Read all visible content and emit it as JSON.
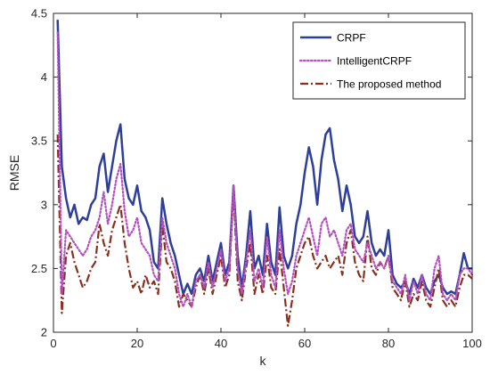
{
  "chart_data": {
    "type": "line",
    "title": "",
    "xlabel": "k",
    "ylabel": "RMSE",
    "xlim": [
      0,
      100
    ],
    "ylim": [
      2,
      4.5
    ],
    "xticks": [
      "0",
      "20",
      "40",
      "60",
      "80",
      "100"
    ],
    "yticks": [
      "2",
      "2.5",
      "3",
      "3.5",
      "4",
      "4.5"
    ],
    "grid": false,
    "legend_position": "top-right",
    "series": [
      {
        "name": "CRPF",
        "color": "#2e3f9a",
        "style": "solid",
        "x": [
          1,
          2,
          3,
          4,
          5,
          6,
          7,
          8,
          9,
          10,
          11,
          12,
          13,
          14,
          15,
          16,
          17,
          18,
          19,
          20,
          21,
          22,
          23,
          24,
          25,
          26,
          27,
          28,
          29,
          30,
          31,
          32,
          33,
          34,
          35,
          36,
          37,
          38,
          39,
          40,
          41,
          42,
          43,
          44,
          45,
          46,
          47,
          48,
          49,
          50,
          51,
          52,
          53,
          54,
          55,
          56,
          57,
          58,
          59,
          60,
          61,
          62,
          63,
          64,
          65,
          66,
          67,
          68,
          69,
          70,
          71,
          72,
          73,
          74,
          75,
          76,
          77,
          78,
          79,
          80,
          81,
          82,
          83,
          84,
          85,
          86,
          87,
          88,
          89,
          90,
          91,
          92,
          93,
          94,
          95,
          96,
          97,
          98,
          99,
          100
        ],
        "values": [
          4.45,
          3.3,
          3.05,
          2.9,
          3.0,
          2.85,
          2.9,
          2.88,
          3.0,
          3.05,
          3.3,
          3.4,
          3.1,
          3.3,
          3.5,
          3.63,
          3.2,
          3.05,
          3.0,
          3.15,
          2.95,
          2.9,
          2.8,
          2.55,
          2.5,
          3.05,
          2.85,
          2.7,
          2.6,
          2.45,
          2.3,
          2.38,
          2.3,
          2.45,
          2.5,
          2.4,
          2.6,
          2.4,
          2.55,
          2.7,
          2.45,
          2.55,
          3.15,
          2.6,
          2.35,
          2.6,
          2.95,
          2.5,
          2.6,
          2.45,
          2.85,
          2.55,
          2.45,
          2.98,
          2.6,
          2.5,
          2.6,
          2.85,
          3.0,
          3.25,
          3.45,
          3.3,
          3.0,
          3.35,
          3.55,
          3.6,
          3.35,
          3.2,
          2.95,
          3.15,
          3.0,
          2.75,
          2.7,
          2.75,
          2.95,
          2.7,
          2.6,
          2.65,
          2.6,
          2.8,
          2.45,
          2.38,
          2.35,
          2.4,
          2.3,
          2.42,
          2.35,
          2.45,
          2.35,
          2.3,
          2.4,
          2.45,
          2.35,
          2.3,
          2.32,
          2.3,
          2.45,
          2.62,
          2.5,
          2.5
        ]
      },
      {
        "name": "IntelligentCRPF",
        "color": "#b44fc0",
        "style": "dotted",
        "x": [
          1,
          2,
          3,
          4,
          5,
          6,
          7,
          8,
          9,
          10,
          11,
          12,
          13,
          14,
          15,
          16,
          17,
          18,
          19,
          20,
          21,
          22,
          23,
          24,
          25,
          26,
          27,
          28,
          29,
          30,
          31,
          32,
          33,
          34,
          35,
          36,
          37,
          38,
          39,
          40,
          41,
          42,
          43,
          44,
          45,
          46,
          47,
          48,
          49,
          50,
          51,
          52,
          53,
          54,
          55,
          56,
          57,
          58,
          59,
          60,
          61,
          62,
          63,
          64,
          65,
          66,
          67,
          68,
          69,
          70,
          71,
          72,
          73,
          74,
          75,
          76,
          77,
          78,
          79,
          80,
          81,
          82,
          83,
          84,
          85,
          86,
          87,
          88,
          89,
          90,
          91,
          92,
          93,
          94,
          95,
          96,
          97,
          98,
          99,
          100
        ],
        "values": [
          4.35,
          2.3,
          2.8,
          2.75,
          2.7,
          2.65,
          2.6,
          2.65,
          2.75,
          2.8,
          2.9,
          3.1,
          2.85,
          3.0,
          3.2,
          3.32,
          2.95,
          2.75,
          2.8,
          2.9,
          2.7,
          2.65,
          2.6,
          2.45,
          2.4,
          2.9,
          2.7,
          2.6,
          2.5,
          2.3,
          2.2,
          2.3,
          2.2,
          2.4,
          2.45,
          2.35,
          2.55,
          2.35,
          2.5,
          2.65,
          2.4,
          2.5,
          3.15,
          2.5,
          2.3,
          2.55,
          2.8,
          2.4,
          2.5,
          2.35,
          2.75,
          2.45,
          2.35,
          2.8,
          2.5,
          2.3,
          2.4,
          2.6,
          2.7,
          2.8,
          2.9,
          2.75,
          2.6,
          2.85,
          2.9,
          2.75,
          2.8,
          2.7,
          2.6,
          2.8,
          2.85,
          2.65,
          2.6,
          2.55,
          2.7,
          2.6,
          2.5,
          2.55,
          2.5,
          2.6,
          2.4,
          2.35,
          2.3,
          2.45,
          2.25,
          2.4,
          2.3,
          2.45,
          2.3,
          2.25,
          2.5,
          2.6,
          2.3,
          2.25,
          2.3,
          2.25,
          2.45,
          2.5,
          2.5,
          2.45
        ]
      },
      {
        "name": "The proposed method",
        "color": "#8a2f1e",
        "style": "dashdot",
        "x": [
          1,
          2,
          3,
          4,
          5,
          6,
          7,
          8,
          9,
          10,
          11,
          12,
          13,
          14,
          15,
          16,
          17,
          18,
          19,
          20,
          21,
          22,
          23,
          24,
          25,
          26,
          27,
          28,
          29,
          30,
          31,
          32,
          33,
          34,
          35,
          36,
          37,
          38,
          39,
          40,
          41,
          42,
          43,
          44,
          45,
          46,
          47,
          48,
          49,
          50,
          51,
          52,
          53,
          54,
          55,
          56,
          57,
          58,
          59,
          60,
          61,
          62,
          63,
          64,
          65,
          66,
          67,
          68,
          69,
          70,
          71,
          72,
          73,
          74,
          75,
          76,
          77,
          78,
          79,
          80,
          81,
          82,
          83,
          84,
          85,
          86,
          87,
          88,
          89,
          90,
          91,
          92,
          93,
          94,
          95,
          96,
          97,
          98,
          99,
          100
        ],
        "values": [
          3.55,
          2.15,
          2.6,
          2.7,
          2.55,
          2.45,
          2.35,
          2.4,
          2.5,
          2.55,
          2.85,
          2.7,
          2.6,
          2.8,
          2.9,
          3.0,
          2.7,
          2.5,
          2.35,
          2.4,
          2.3,
          2.45,
          2.35,
          2.4,
          2.3,
          2.85,
          2.55,
          2.5,
          2.4,
          2.2,
          2.3,
          2.25,
          2.2,
          2.35,
          2.45,
          2.3,
          2.5,
          2.3,
          2.45,
          2.6,
          2.35,
          2.45,
          3.12,
          2.4,
          2.25,
          2.5,
          2.7,
          2.3,
          2.45,
          2.3,
          2.6,
          2.35,
          2.3,
          2.65,
          2.35,
          2.05,
          2.25,
          2.5,
          2.6,
          2.7,
          2.75,
          2.6,
          2.5,
          2.55,
          2.6,
          2.5,
          2.55,
          2.6,
          2.45,
          2.7,
          2.8,
          2.55,
          2.45,
          2.4,
          2.75,
          2.5,
          2.45,
          2.55,
          2.5,
          2.6,
          2.35,
          2.3,
          2.25,
          2.4,
          2.2,
          2.3,
          2.25,
          2.4,
          2.25,
          2.2,
          2.35,
          2.5,
          2.25,
          2.2,
          2.25,
          2.2,
          2.35,
          2.45,
          2.45,
          2.42
        ]
      }
    ]
  }
}
